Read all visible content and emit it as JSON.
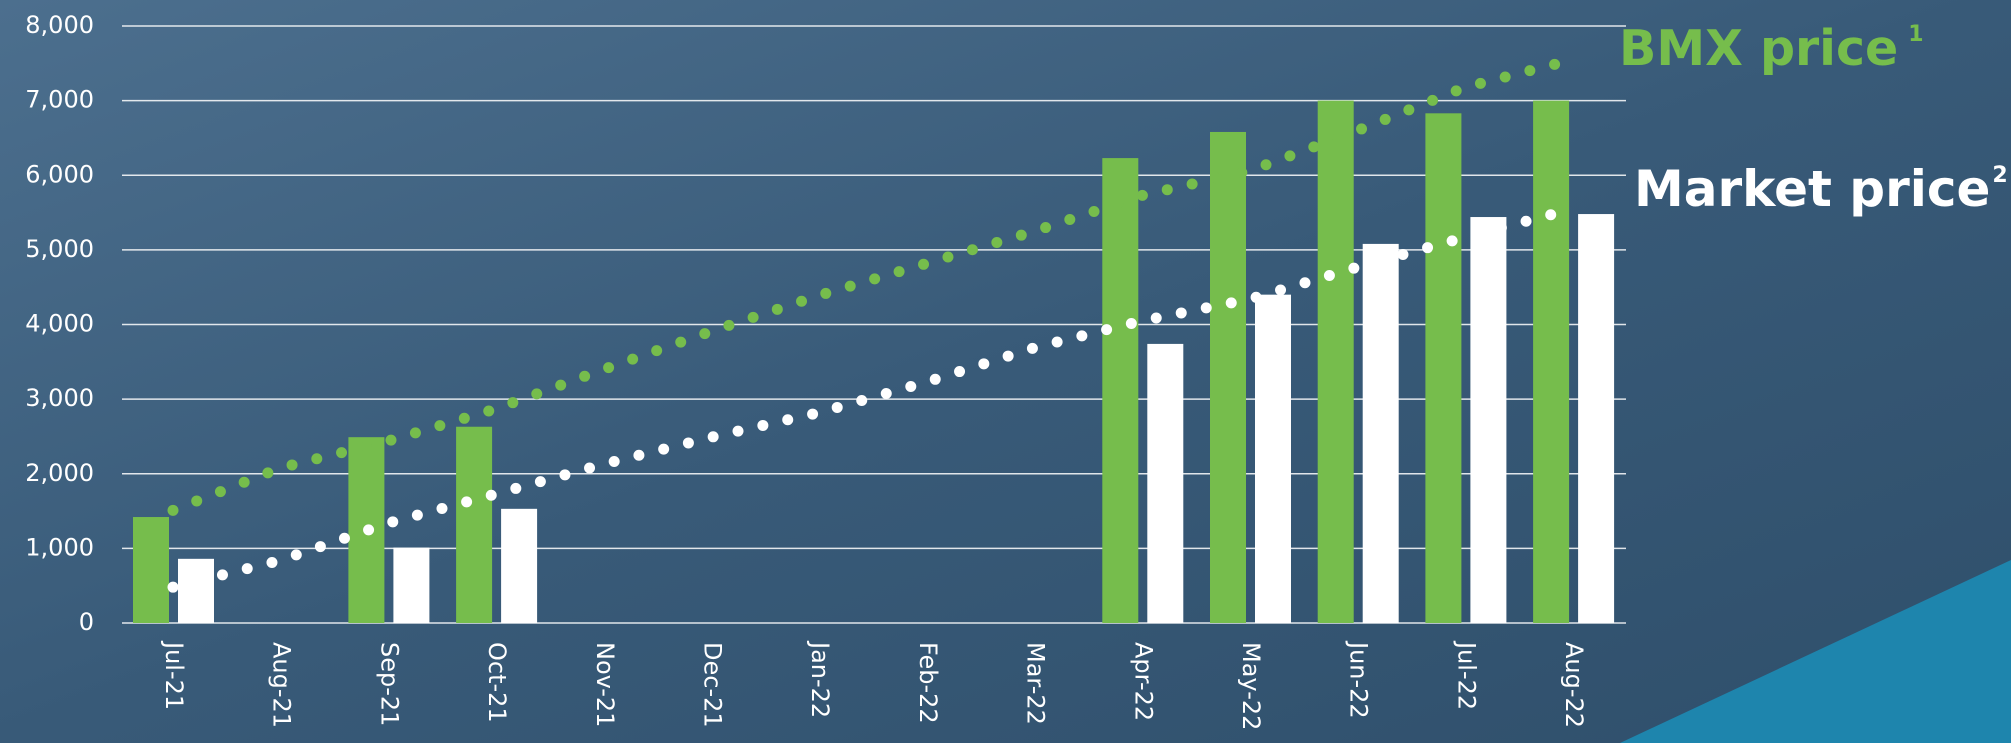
{
  "chart_data": {
    "type": "bar",
    "categories": [
      "Jul-21",
      "Aug-21",
      "Sep-21",
      "Oct-21",
      "Nov-21",
      "Dec-21",
      "Jan-22",
      "Feb-22",
      "Mar-22",
      "Apr-22",
      "May-22",
      "Jun-22",
      "Jul-22",
      "Aug-22"
    ],
    "series": [
      {
        "name": "BMX price",
        "footnote": "1",
        "color": "#76bd4c",
        "values": [
          1420,
          null,
          2490,
          2630,
          null,
          null,
          null,
          null,
          null,
          6230,
          6580,
          7000,
          6830,
          7000
        ],
        "trend": [
          1510,
          2080,
          2440,
          2870,
          3400,
          3910,
          4390,
          4820,
          5250,
          5730,
          6060,
          6600,
          7180,
          7550
        ]
      },
      {
        "name": "Market price",
        "footnote": "2",
        "color": "#ffffff",
        "values": [
          860,
          null,
          1010,
          1530,
          null,
          null,
          null,
          null,
          null,
          3740,
          4400,
          5080,
          5440,
          5480
        ],
        "trend": [
          480,
          840,
          1340,
          1730,
          2130,
          2490,
          2820,
          3230,
          3690,
          4050,
          4340,
          4770,
          5170,
          5550
        ]
      }
    ],
    "ylim": [
      0,
      8000
    ],
    "yticks": [
      0,
      {
        "value": 1000,
        "label": "1,000"
      },
      {
        "value": 2000,
        "label": "2,000"
      },
      {
        "value": 3000,
        "label": "3,000"
      },
      {
        "value": 4000,
        "label": "4,000"
      },
      {
        "value": 5000,
        "label": "5,000"
      },
      {
        "value": 6000,
        "label": "6,000"
      },
      {
        "value": 7000,
        "label": "7,000"
      },
      {
        "value": 8000,
        "label": "8,000"
      }
    ],
    "grid": true
  }
}
